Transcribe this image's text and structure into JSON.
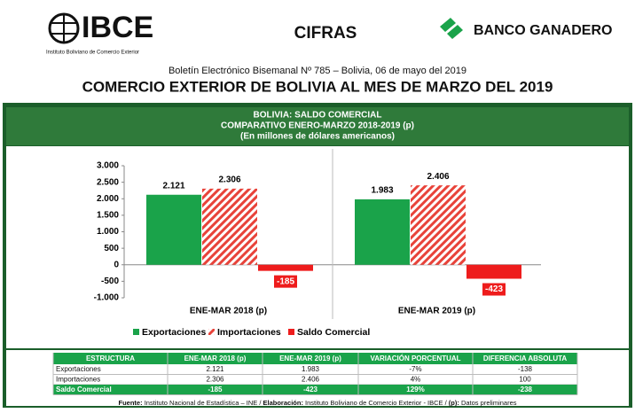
{
  "header": {
    "logo": "IBCE",
    "logo_sub": "Instituto Boliviano de Comercio Exterior",
    "section": "CIFRAS",
    "sponsor": "BANCO GANADERO",
    "bulletin": "Boletín Electrónico Bisemanal Nº 785 – Bolivia, 06 de mayo del 2019",
    "title": "COMERCIO EXTERIOR DE BOLIVIA AL MES DE MARZO DEL 2019"
  },
  "chart_data": {
    "type": "bar",
    "title": "BOLIVIA: SALDO COMERCIAL",
    "subtitle": "COMPARATIVO ENERO-MARZO 2018-2019 (p)",
    "units": "(En millones de dólares americanos)",
    "categories": [
      "ENE-MAR 2018 (p)",
      "ENE-MAR 2019 (p)"
    ],
    "series": [
      {
        "name": "Exportaciones",
        "color": "#1aa34a",
        "values": [
          2121,
          1983
        ],
        "value_labels": [
          "2.121",
          "1.983"
        ]
      },
      {
        "name": "Importaciones",
        "color": "#e8433a",
        "hatch": true,
        "values": [
          2306,
          2406
        ],
        "value_labels": [
          "2.306",
          "2.406"
        ]
      },
      {
        "name": "Saldo Comercial",
        "color": "#ee1c1c",
        "values": [
          -185,
          -423
        ]
      }
    ],
    "ylim": [
      -1000,
      3000
    ],
    "yticks": [
      {
        "value": -1000,
        "label": "-1.000"
      },
      -500,
      0,
      500,
      {
        "value": 1000,
        "label": "1.000"
      },
      {
        "value": 1500,
        "label": "1.500"
      },
      {
        "value": 2000,
        "label": "2.000"
      },
      {
        "value": 2500,
        "label": "2.500"
      },
      {
        "value": 3000,
        "label": "3.000"
      }
    ]
  },
  "table": {
    "header": [
      "ESTRUCTURA",
      "ENE-MAR 2018 (p)",
      "ENE-MAR 2019 (p)",
      "VARIACIÓN PORCENTUAL",
      "DIFERENCIA ABSOLUTA"
    ],
    "rows": [
      [
        "Exportaciones",
        "2.121",
        "1.983",
        "-7%",
        "-138"
      ],
      [
        "Importaciones",
        "2.306",
        "2.406",
        "4%",
        "100"
      ],
      [
        "Saldo Comercial",
        "-185",
        "-423",
        "129%",
        "-238"
      ]
    ]
  },
  "source": {
    "label1": "Fuente:",
    "text1": "Instituto Nacional de Estadística – INE /",
    "label2": "Elaboración:",
    "text2": "Instituto Boliviano de Comercio Exterior - IBCE /",
    "label3": "(p):",
    "text3": "Datos preliminares"
  }
}
